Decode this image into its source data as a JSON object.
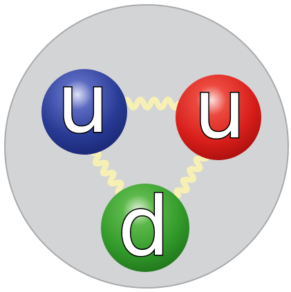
{
  "nodes": [
    {
      "label": "u"
    },
    {
      "label": "u"
    },
    {
      "label": "d"
    }
  ]
}
